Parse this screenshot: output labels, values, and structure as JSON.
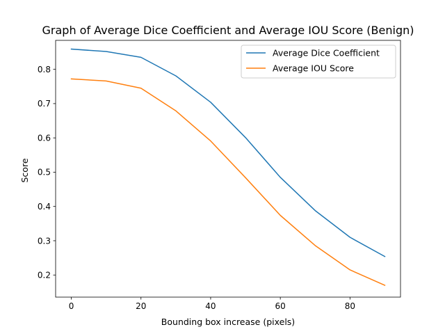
{
  "chart_data": {
    "type": "line",
    "title": "Graph of Average Dice Coefficient and Average IOU Score (Benign)",
    "xlabel": "Bounding box increase (pixels)",
    "ylabel": "Score",
    "x": [
      0,
      10,
      20,
      30,
      40,
      50,
      60,
      70,
      80,
      90
    ],
    "xlim": [
      -4.5,
      94.5
    ],
    "ylim": [
      0.1355,
      0.8845
    ],
    "xticks": [
      0,
      20,
      40,
      60,
      80
    ],
    "yticks": [
      0.2,
      0.3,
      0.4,
      0.5,
      0.6,
      0.7,
      0.8
    ],
    "grid": false,
    "legend_position": "top-right",
    "series": [
      {
        "name": "Average Dice Coefficient",
        "color": "#1f77b4",
        "values": [
          0.859,
          0.852,
          0.835,
          0.781,
          0.704,
          0.601,
          0.485,
          0.388,
          0.31,
          0.254
        ]
      },
      {
        "name": "Average IOU Score",
        "color": "#ff7f0e",
        "values": [
          0.772,
          0.766,
          0.745,
          0.679,
          0.591,
          0.484,
          0.374,
          0.286,
          0.215,
          0.17
        ]
      }
    ]
  }
}
